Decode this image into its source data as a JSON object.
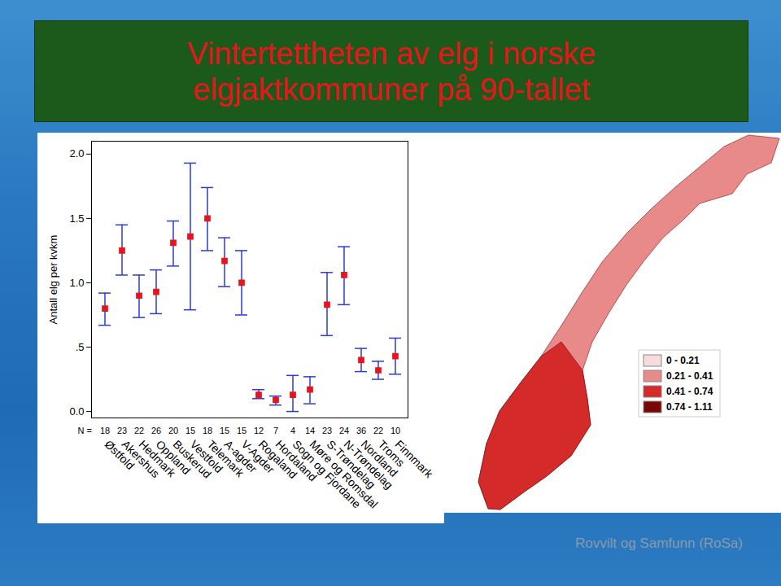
{
  "chart_data": {
    "type": "errorbar",
    "title": "Vintertettheten av elg i norske elgjaktkommuner på 90-tallet",
    "ylabel": "Antall elg per kvkm",
    "categories": [
      "Østfold",
      "Akershus",
      "Hedmark",
      "Oppland",
      "Buskerud",
      "Vestfold",
      "Telemark",
      "A-agder",
      "V-Agder",
      "Rogaland",
      "Hordaland",
      "Sogn og Fjordane",
      "Møre og Romsdal",
      "S-Trøndelag",
      "N-Trøndelag",
      "Nordland",
      "Troms",
      "Finnmark"
    ],
    "values": [
      0.8,
      1.25,
      0.9,
      0.93,
      1.31,
      1.36,
      1.5,
      1.17,
      1.0,
      0.13,
      0.09,
      0.13,
      0.17,
      0.83,
      1.06,
      0.4,
      0.32,
      0.43
    ],
    "lower": [
      0.67,
      1.06,
      0.73,
      0.76,
      1.13,
      0.79,
      1.25,
      0.97,
      0.75,
      0.1,
      0.05,
      0.0,
      0.06,
      0.59,
      0.83,
      0.31,
      0.25,
      0.29
    ],
    "upper": [
      0.92,
      1.45,
      1.06,
      1.1,
      1.48,
      1.93,
      1.74,
      1.35,
      1.25,
      0.17,
      0.12,
      0.28,
      0.27,
      1.08,
      1.28,
      0.49,
      0.39,
      0.57
    ],
    "n_label": "N =",
    "n": [
      18,
      23,
      22,
      26,
      20,
      15,
      18,
      15,
      15,
      12,
      7,
      4,
      14,
      23,
      24,
      36,
      22,
      10
    ],
    "color": "#e8141b",
    "error_color": "#2a3bd6",
    "ylim": [
      -0.05,
      2.1
    ],
    "yticks": [
      {
        "value": 0,
        "label": "0.0"
      },
      {
        "value": 0.5,
        "label": ".5"
      },
      {
        "value": 1,
        "label": "1.0"
      },
      {
        "value": 1.5,
        "label": "1.5"
      },
      {
        "value": 2,
        "label": "2.0"
      }
    ],
    "map_legend": {
      "labels": [
        "0 - 0.21",
        "0.21 - 0.41",
        "0.41 - 0.74",
        "0.74 - 1.11"
      ],
      "colors": [
        "#f6dcdc",
        "#e88a8a",
        "#d42a2a",
        "#7a0606"
      ]
    },
    "source": "Rovvilt og Samfunn (RoSa)"
  }
}
